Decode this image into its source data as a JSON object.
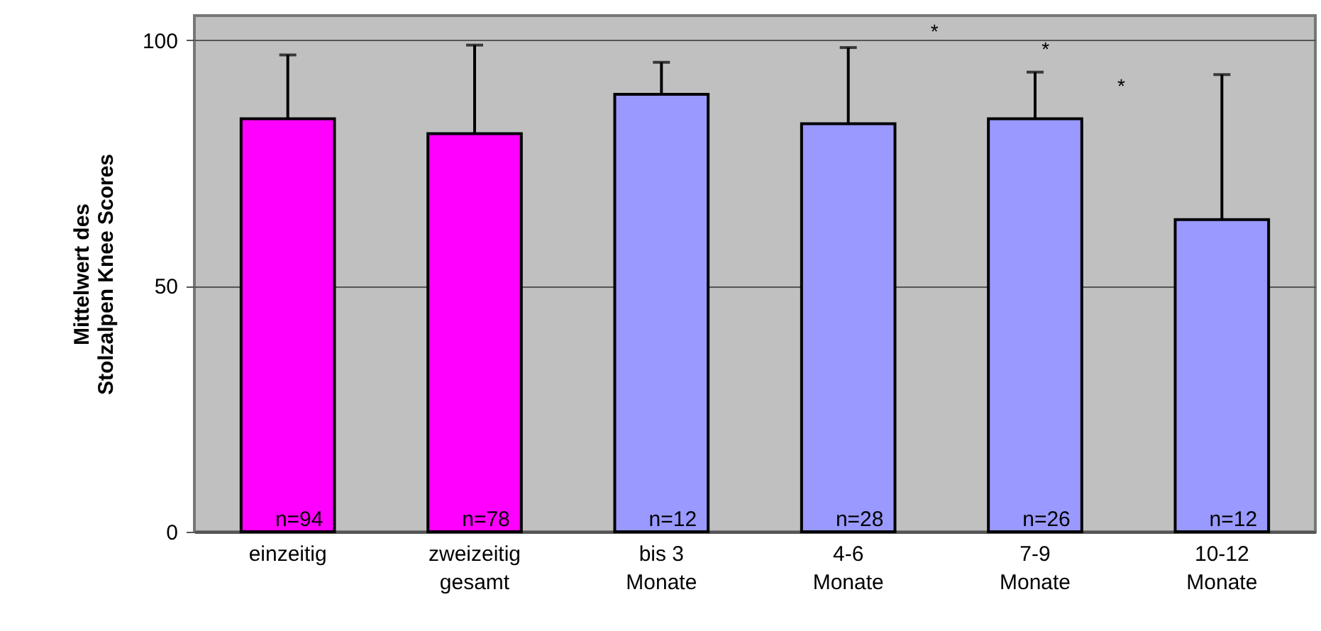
{
  "chart_data": {
    "type": "bar",
    "ylabel": "Mittelwert des\nStolzalpen Knee Scores",
    "categories": [
      "einzeitig",
      "zweizeitig\ngesamt",
      "bis 3\nMonate",
      "4-6\nMonate",
      "7-9\nMonate",
      "10-12\nMonate"
    ],
    "values": [
      84,
      81,
      89,
      83,
      84,
      63.5
    ],
    "colors": [
      "#ff00ff",
      "#ff00ff",
      "#9999ff",
      "#9999ff",
      "#9999ff",
      "#9999ff"
    ],
    "errors": [
      [
        84,
        97
      ],
      [
        81,
        99
      ],
      [
        89,
        95.5
      ],
      [
        83,
        98.5
      ],
      [
        84,
        93.5
      ],
      [
        63.5,
        93
      ]
    ],
    "ylim": [
      0,
      105
    ],
    "yticks": [
      0,
      50,
      100
    ],
    "grid": "y",
    "annotations": [
      {
        "text": "n=94",
        "x": "einzeitig",
        "y": 0
      },
      {
        "text": "n=78",
        "x": "zweizeitig\ngesamt",
        "y": 0
      },
      {
        "text": "n=12",
        "x": "bis 3\nMonate",
        "y": 0
      },
      {
        "text": "n=28",
        "x": "4-6\nMonate",
        "y": 0
      },
      {
        "text": "n=26",
        "x": "7-9\nMonate",
        "y": 0
      },
      {
        "text": "n=12",
        "x": "10-12\nMonate",
        "y": 0
      },
      "*",
      "*",
      "*"
    ]
  }
}
